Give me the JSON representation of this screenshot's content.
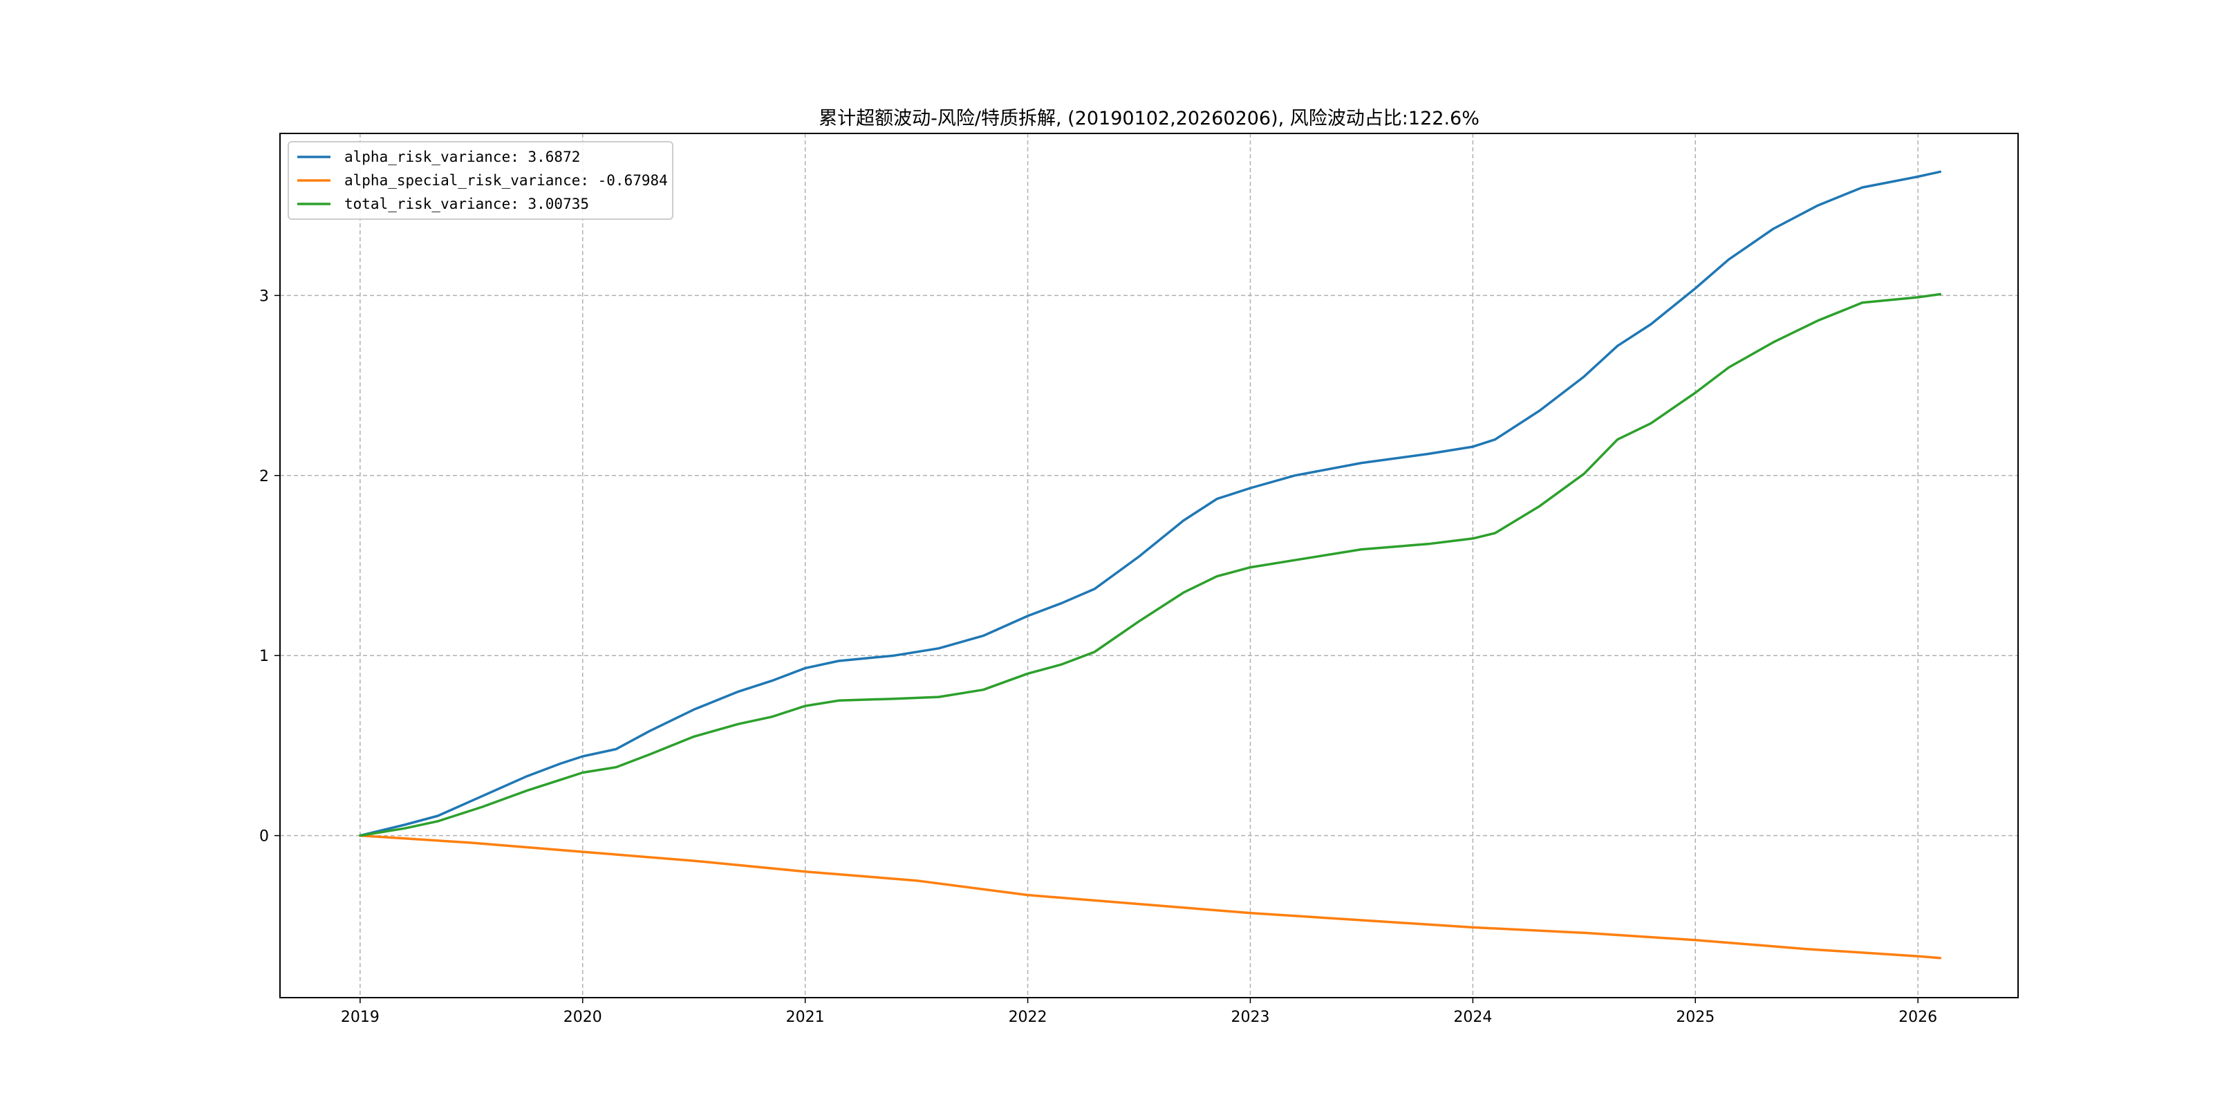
{
  "chart_data": {
    "type": "line",
    "title": "累计超额波动-风险/特质拆解, (20190102,20260206), 风险波动占比:122.6%",
    "xlabel": "",
    "ylabel": "",
    "x_ticks": [
      "2019",
      "2020",
      "2021",
      "2022",
      "2023",
      "2024",
      "2025",
      "2026"
    ],
    "y_ticks": [
      "0",
      "1",
      "2",
      "3"
    ],
    "xlim": [
      2018.64,
      2026.45
    ],
    "ylim": [
      -0.9,
      3.9
    ],
    "grid": true,
    "legend_position": "upper left",
    "series": [
      {
        "name": "alpha_risk_variance: 3.6872",
        "color": "#1f77b4",
        "x": [
          2019.0,
          2019.2,
          2019.35,
          2019.55,
          2019.75,
          2019.9,
          2020.0,
          2020.15,
          2020.3,
          2020.5,
          2020.7,
          2020.85,
          2021.0,
          2021.15,
          2021.4,
          2021.6,
          2021.8,
          2022.0,
          2022.15,
          2022.3,
          2022.5,
          2022.7,
          2022.85,
          2023.0,
          2023.2,
          2023.5,
          2023.8,
          2024.0,
          2024.1,
          2024.3,
          2024.5,
          2024.65,
          2024.8,
          2025.0,
          2025.15,
          2025.35,
          2025.55,
          2025.75,
          2026.0,
          2026.1
        ],
        "y": [
          0.0,
          0.06,
          0.11,
          0.22,
          0.33,
          0.4,
          0.44,
          0.48,
          0.58,
          0.7,
          0.8,
          0.86,
          0.93,
          0.97,
          1.0,
          1.04,
          1.11,
          1.22,
          1.29,
          1.37,
          1.55,
          1.75,
          1.87,
          1.93,
          2.0,
          2.07,
          2.12,
          2.16,
          2.2,
          2.36,
          2.55,
          2.72,
          2.84,
          3.04,
          3.2,
          3.37,
          3.5,
          3.6,
          3.66,
          3.6872
        ]
      },
      {
        "name": "alpha_special_risk_variance: -0.67984",
        "color": "#ff7f0e",
        "x": [
          2019.0,
          2019.5,
          2020.0,
          2020.5,
          2021.0,
          2021.5,
          2022.0,
          2022.5,
          2023.0,
          2023.5,
          2024.0,
          2024.5,
          2025.0,
          2025.5,
          2026.0,
          2026.1
        ],
        "y": [
          0.0,
          -0.04,
          -0.09,
          -0.14,
          -0.2,
          -0.25,
          -0.33,
          -0.38,
          -0.43,
          -0.47,
          -0.51,
          -0.54,
          -0.58,
          -0.63,
          -0.67,
          -0.67984
        ]
      },
      {
        "name": "total_risk_variance: 3.00735",
        "color": "#2ca02c",
        "x": [
          2019.0,
          2019.2,
          2019.35,
          2019.55,
          2019.75,
          2019.9,
          2020.0,
          2020.15,
          2020.3,
          2020.5,
          2020.7,
          2020.85,
          2021.0,
          2021.15,
          2021.4,
          2021.6,
          2021.8,
          2022.0,
          2022.15,
          2022.3,
          2022.5,
          2022.7,
          2022.85,
          2023.0,
          2023.2,
          2023.5,
          2023.8,
          2024.0,
          2024.1,
          2024.3,
          2024.5,
          2024.65,
          2024.8,
          2025.0,
          2025.15,
          2025.35,
          2025.55,
          2025.75,
          2026.0,
          2026.1
        ],
        "y": [
          0.0,
          0.04,
          0.08,
          0.16,
          0.25,
          0.31,
          0.35,
          0.38,
          0.45,
          0.55,
          0.62,
          0.66,
          0.72,
          0.75,
          0.76,
          0.77,
          0.81,
          0.9,
          0.95,
          1.02,
          1.19,
          1.35,
          1.44,
          1.49,
          1.53,
          1.59,
          1.62,
          1.65,
          1.68,
          1.83,
          2.01,
          2.2,
          2.29,
          2.46,
          2.6,
          2.74,
          2.86,
          2.96,
          2.99,
          3.00735
        ]
      }
    ]
  }
}
